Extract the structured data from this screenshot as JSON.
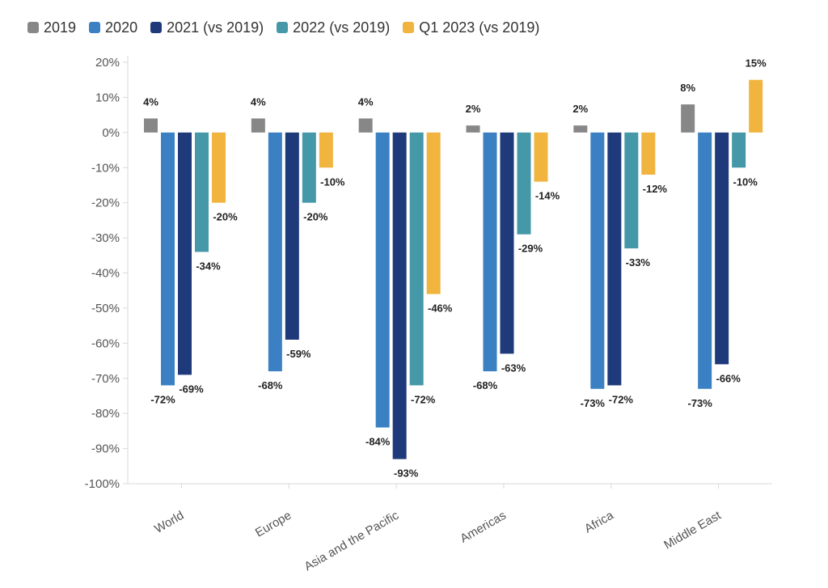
{
  "chart_data": {
    "type": "bar",
    "title": "",
    "xlabel": "",
    "ylabel": "",
    "ylim": [
      -100,
      20
    ],
    "yticks": [
      20,
      10,
      0,
      -10,
      -20,
      -30,
      -40,
      -50,
      -60,
      -70,
      -80,
      -90,
      -100
    ],
    "ytick_suffix": "%",
    "grid": false,
    "legend_position": "top-left",
    "categories": [
      "World",
      "Europe",
      "Asia and the Pacific",
      "Americas",
      "Africa",
      "Middle East"
    ],
    "series": [
      {
        "name": "2019",
        "color": "#878787",
        "values": [
          4,
          4,
          4,
          2,
          2,
          8
        ]
      },
      {
        "name": "2020",
        "color": "#3a80c3",
        "values": [
          -72,
          -68,
          -84,
          -68,
          -73,
          -73
        ]
      },
      {
        "name": "2021 (vs 2019)",
        "color": "#1f3a7a",
        "values": [
          -69,
          -59,
          -93,
          -63,
          -72,
          -66
        ]
      },
      {
        "name": "2022 (vs 2019)",
        "color": "#4598a8",
        "values": [
          -34,
          -20,
          -72,
          -29,
          -33,
          -10
        ]
      },
      {
        "name": "Q1 2023 (vs 2019)",
        "color": "#f0b43f",
        "values": [
          -20,
          -10,
          -46,
          -14,
          -12,
          15
        ]
      }
    ],
    "data_labels": [
      [
        "4%",
        "-72%",
        "-69%",
        "-34%",
        "-20%"
      ],
      [
        "4%",
        "-68%",
        "-59%",
        "-20%",
        "-10%"
      ],
      [
        "4%",
        "-84%",
        "-93%",
        "-72%",
        "-46%"
      ],
      [
        "2%",
        "-68%",
        "-63%",
        "-29%",
        "-14%"
      ],
      [
        "2%",
        "-73%",
        "-72%",
        "-33%",
        "-12%"
      ],
      [
        "8%",
        "-73%",
        "-66%",
        "-10%",
        "15%"
      ]
    ]
  }
}
